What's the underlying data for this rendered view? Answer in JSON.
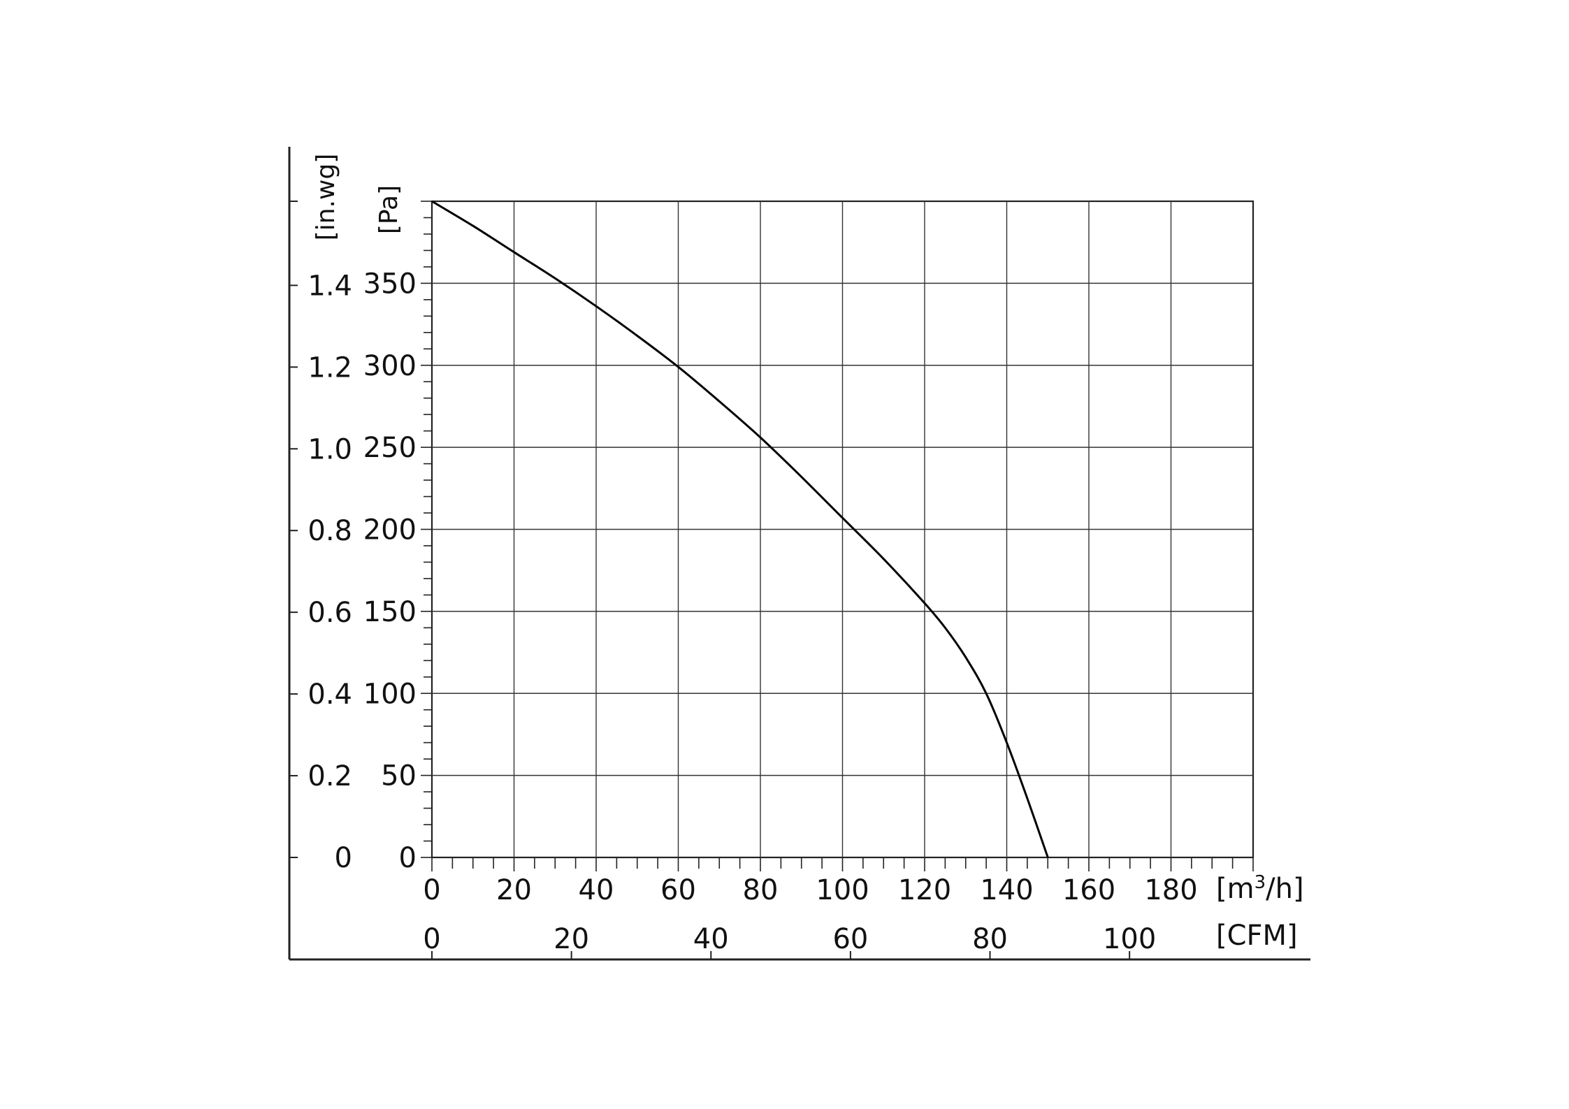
{
  "chart_data": {
    "type": "line",
    "xlabel": "[m³/h]",
    "ylabel": "[Pa]",
    "secondary_xlabel": "[CFM]",
    "secondary_ylabel": "[in.wg]",
    "xlim": [
      0,
      200
    ],
    "ylim": [
      0,
      400
    ],
    "x_ticks": [
      "0",
      "20",
      "40",
      "60",
      "80",
      "100",
      "120",
      "140",
      "160",
      "180"
    ],
    "y_ticks": [
      "0",
      "50",
      "100",
      "150",
      "200",
      "250",
      "300",
      "350"
    ],
    "secondary_x_ticks": [
      {
        "label": "0",
        "value": 0
      },
      {
        "label": "20",
        "value": 20
      },
      {
        "label": "40",
        "value": 40
      },
      {
        "label": "60",
        "value": 60
      },
      {
        "label": "80",
        "value": 80
      },
      {
        "label": "100",
        "value": 100
      }
    ],
    "secondary_y_ticks": [
      {
        "label": "0",
        "value": 0
      },
      {
        "label": "0.2",
        "value": 0.2
      },
      {
        "label": "0.4",
        "value": 0.4
      },
      {
        "label": "0.6",
        "value": 0.6
      },
      {
        "label": "0.8",
        "value": 0.8
      },
      {
        "label": "1.0",
        "value": 1.0
      },
      {
        "label": "1.2",
        "value": 1.2
      },
      {
        "label": "1.4",
        "value": 1.4
      }
    ],
    "grid": true,
    "series": [
      {
        "color": "#000000",
        "x": [
          0,
          10,
          20,
          30,
          40,
          50,
          60,
          70,
          80,
          90,
          100,
          110,
          120,
          125,
          130,
          135,
          140,
          145,
          150
        ],
        "y": [
          400,
          385,
          369,
          353,
          336,
          318,
          299,
          278,
          256,
          232,
          207,
          182,
          155,
          140,
          122,
          100,
          70,
          36,
          0
        ]
      }
    ]
  }
}
